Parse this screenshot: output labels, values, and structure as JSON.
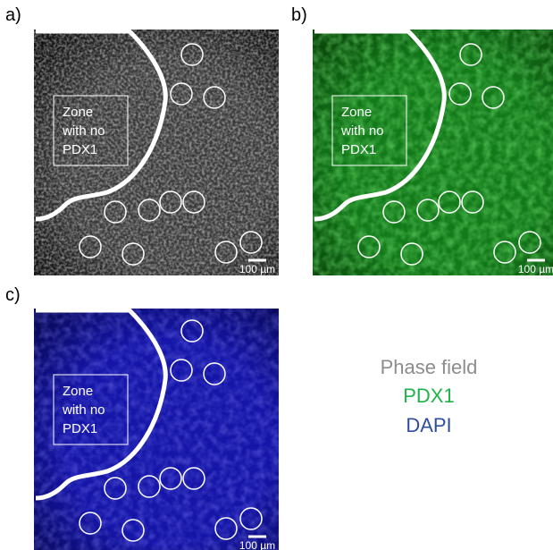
{
  "panels": [
    {
      "label": "a)",
      "zone_text": [
        "Zone",
        "with no",
        "PDX1"
      ],
      "scale_bar": "100 µm"
    },
    {
      "label": "b)",
      "zone_text": [
        "Zone",
        "with no",
        "PDX1"
      ],
      "scale_bar": "100 µm"
    },
    {
      "label": "c)",
      "zone_text": [
        "Zone",
        "with no",
        "PDX1"
      ],
      "scale_bar": "100 µm"
    }
  ],
  "legend": [
    "Phase field",
    "PDX1",
    "DAPI"
  ]
}
